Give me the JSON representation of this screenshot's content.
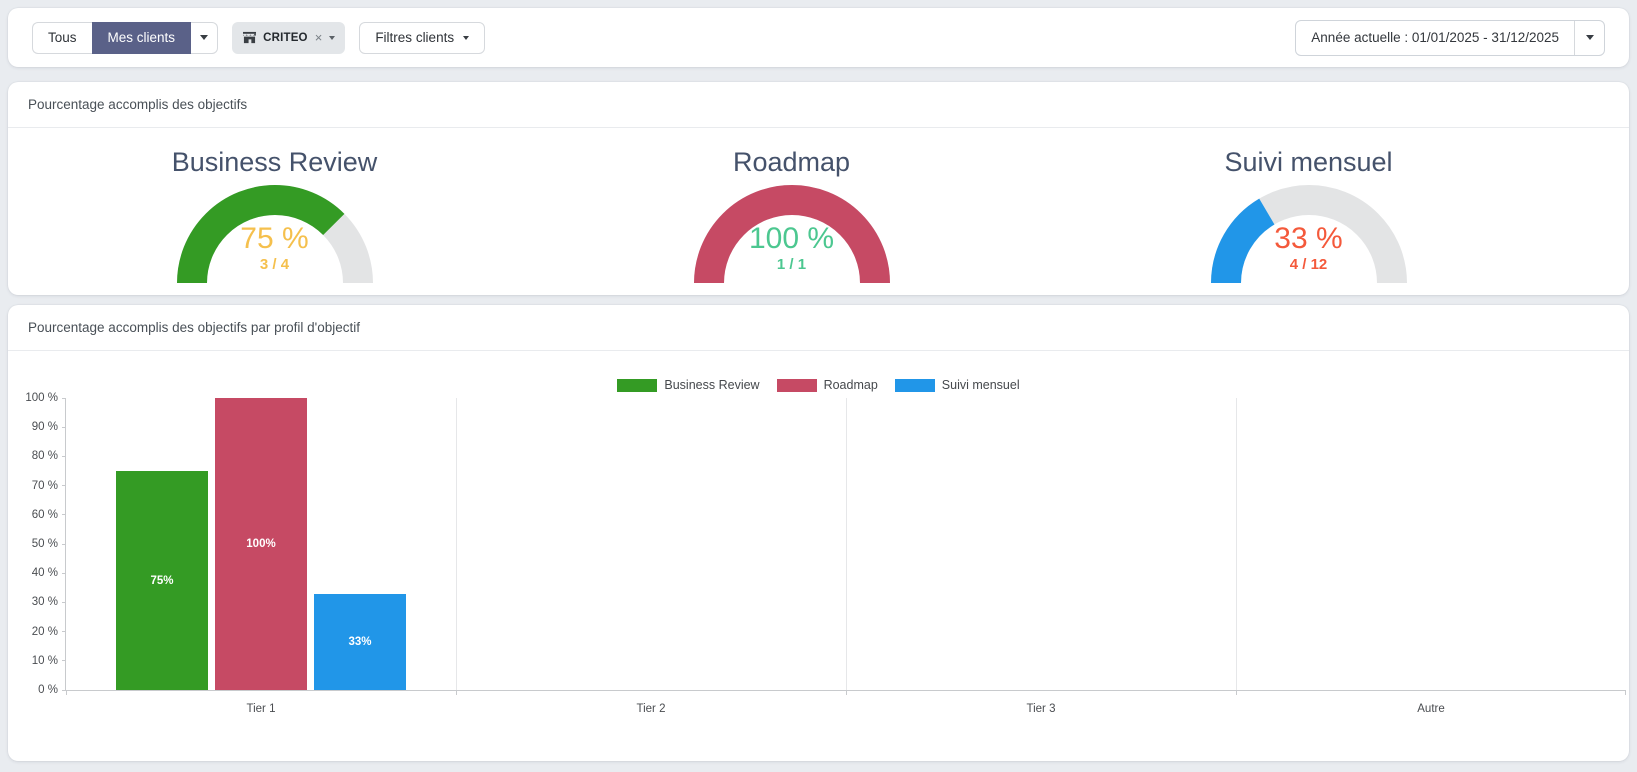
{
  "toolbar": {
    "filter_all": "Tous",
    "filter_my_clients": "Mes clients",
    "client_tag": "CRITEO",
    "client_tag_remove": "×",
    "filters_button": "Filtres clients",
    "date_range": "Année actuelle : 01/01/2025 - 31/12/2025",
    "active_filter_color": "#5a6188"
  },
  "panels": {
    "goals": {
      "title": "Pourcentage accomplis des objectifs"
    },
    "by_profile": {
      "title": "Pourcentage accomplis des objectifs par profil d'objectif"
    }
  },
  "gauges": [
    {
      "title": "Business Review",
      "percent": 75,
      "value_label": "75 %",
      "fraction_label": "3 / 4",
      "arc_color": "#349b24",
      "track_color": "#e3e4e5",
      "value_color": "#f5c04d"
    },
    {
      "title": "Roadmap",
      "percent": 100,
      "value_label": "100 %",
      "fraction_label": "1 / 1",
      "arc_color": "#c64a64",
      "track_color": "#e3e4e5",
      "value_color": "#4cc790"
    },
    {
      "title": "Suivi mensuel",
      "percent": 33,
      "value_label": "33 %",
      "fraction_label": "4 / 12",
      "arc_color": "#2196e8",
      "track_color": "#e3e4e5",
      "value_color": "#f4593b"
    }
  ],
  "chart_data": {
    "type": "bar",
    "title": "Pourcentage accomplis des objectifs par profil d'objectif",
    "categories": [
      "Tier 1",
      "Tier 2",
      "Tier 3",
      "Autre"
    ],
    "series": [
      {
        "name": "Business Review",
        "color": "#349b24",
        "values": [
          75,
          null,
          null,
          null
        ]
      },
      {
        "name": "Roadmap",
        "color": "#c64a64",
        "values": [
          100,
          null,
          null,
          null
        ]
      },
      {
        "name": "Suivi mensuel",
        "color": "#2196e8",
        "values": [
          33,
          null,
          null,
          null
        ]
      }
    ],
    "ylim": [
      0,
      100
    ],
    "yticks": [
      0,
      10,
      20,
      30,
      40,
      50,
      60,
      70,
      80,
      90,
      100
    ],
    "ytick_suffix": " %",
    "bar_label_suffix": "%",
    "grid": "vertical-category-separators",
    "legend_position": "top-center"
  }
}
